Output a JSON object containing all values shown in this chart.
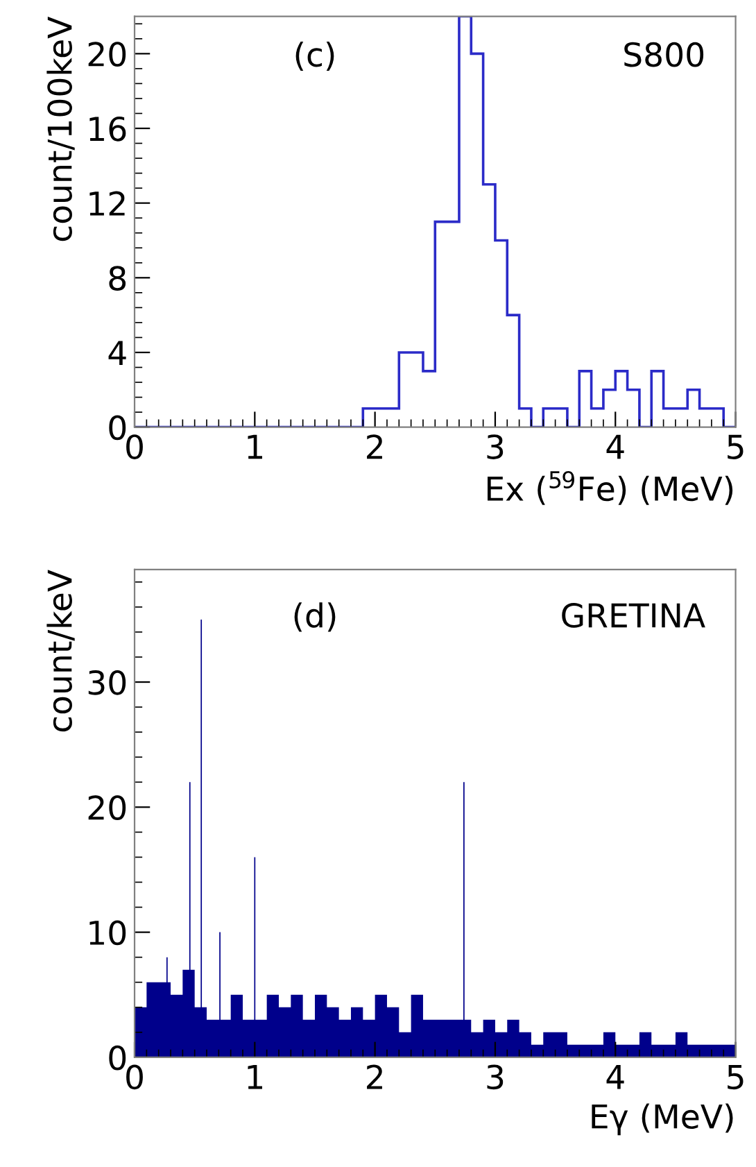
{
  "chart_data": [
    {
      "type": "histogram",
      "xlabel": "Ex ($^{59}$Fe) (MeV)",
      "ylabel": "count/100keV",
      "color": "#2b2bc8",
      "bins": [
        0,
        0.1,
        0.2,
        0.3,
        0.4,
        0.5,
        0.6,
        0.7,
        0.8,
        0.9,
        1.0,
        1.1,
        1.2,
        1.3,
        1.4,
        1.5,
        1.6,
        1.7,
        1.8,
        1.9,
        2.0,
        2.1,
        2.2,
        2.3,
        2.4,
        2.5,
        2.6,
        2.7,
        2.8,
        2.9,
        3.0,
        3.1,
        3.2,
        3.3,
        3.4,
        3.5,
        3.6,
        3.7,
        3.8,
        3.9,
        4.0,
        4.1,
        4.2,
        4.3,
        4.4,
        4.5,
        4.6,
        4.7,
        4.8,
        4.9,
        5.0
      ],
      "values": [
        0,
        0,
        0,
        0,
        0,
        0,
        0,
        0,
        0,
        0,
        0,
        0,
        0,
        0,
        0,
        0,
        0,
        0,
        0,
        1,
        1,
        1,
        4,
        4,
        3,
        11,
        11,
        22,
        20,
        13,
        10,
        6,
        1,
        0,
        1,
        1,
        0,
        3,
        1,
        2,
        3,
        2,
        0,
        3,
        1,
        1,
        2,
        1,
        1,
        0
      ],
      "xlim": [
        0,
        5
      ],
      "xticks": [
        0,
        1,
        2,
        3,
        4,
        5
      ],
      "ylim": [
        0,
        22
      ],
      "yticks": [
        0,
        4,
        8,
        12,
        16,
        20
      ],
      "grid": false,
      "annotations": [
        "(c)",
        "S800"
      ]
    },
    {
      "type": "histogram",
      "xlabel": "Eγ (MeV)",
      "ylabel": "count/keV",
      "color": "#00008b",
      "bins": [
        0,
        0.1,
        0.2,
        0.265,
        0.275,
        0.3,
        0.4,
        0.455,
        0.465,
        0.5,
        0.55,
        0.56,
        0.6,
        0.7,
        0.705,
        0.715,
        0.8,
        0.9,
        0.995,
        1.005,
        1.1,
        1.2,
        1.3,
        1.4,
        1.5,
        1.6,
        1.7,
        1.8,
        1.9,
        2.0,
        2.1,
        2.2,
        2.3,
        2.4,
        2.5,
        2.6,
        2.7,
        2.735,
        2.745,
        2.8,
        2.9,
        3.0,
        3.1,
        3.2,
        3.3,
        3.4,
        3.5,
        3.6,
        3.7,
        3.8,
        3.9,
        4.0,
        4.1,
        4.2,
        4.3,
        4.4,
        4.5,
        4.6,
        4.7,
        4.8,
        4.9,
        5.0
      ],
      "values": [
        4,
        6,
        6,
        8,
        6,
        5,
        7,
        22,
        7,
        4,
        35,
        4,
        3,
        3,
        10,
        3,
        5,
        3,
        16,
        3,
        5,
        4,
        5,
        3,
        5,
        4,
        3,
        4,
        3,
        5,
        4,
        2,
        5,
        3,
        3,
        3,
        3,
        22,
        3,
        2,
        3,
        2,
        3,
        2,
        1,
        2,
        2,
        1,
        1,
        1,
        2,
        1,
        1,
        2,
        1,
        1,
        2,
        1,
        1,
        1,
        1
      ],
      "xlim": [
        0,
        5
      ],
      "xticks": [
        0,
        1,
        2,
        3,
        4,
        5
      ],
      "ylim": [
        0,
        39
      ],
      "yticks": [
        0,
        10,
        20,
        30
      ],
      "grid": false,
      "annotations": [
        "(d)",
        "GRETINA"
      ]
    }
  ]
}
